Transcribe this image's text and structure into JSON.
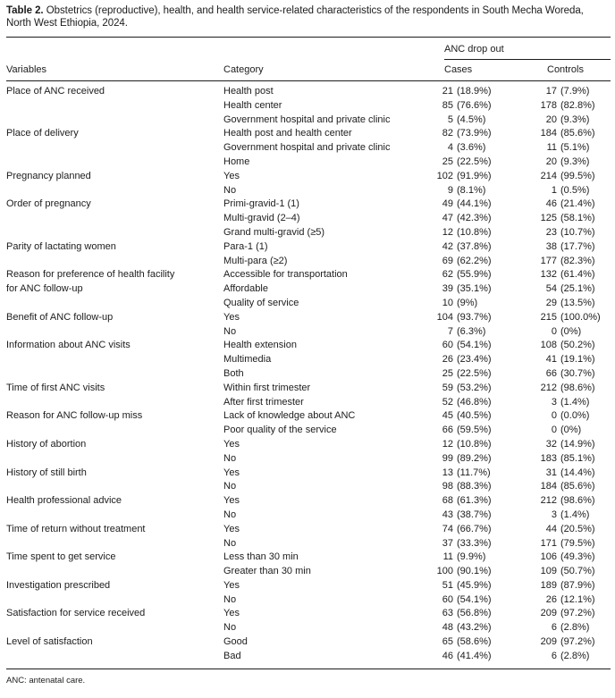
{
  "page": {
    "background": "#ffffff",
    "text_color": "#1c1c1c",
    "rule_color": "#1c1c1c"
  },
  "table": {
    "label": "Table 2.",
    "caption": "Obstetrics (reproductive), health, and health service-related characteristics of the respondents in South Mecha Woreda, North West Ethiopia, 2024.",
    "spanner": "ANC drop out",
    "columns": [
      "Variables",
      "Category",
      "Cases",
      "Controls"
    ],
    "groups": [
      {
        "variable": "Place of ANC received",
        "items": [
          {
            "category": "Health post",
            "cases_n": "21",
            "cases_pct": "(18.9%)",
            "controls_n": "17",
            "controls_pct": "(7.9%)"
          },
          {
            "category": "Health center",
            "cases_n": "85",
            "cases_pct": "(76.6%)",
            "controls_n": "178",
            "controls_pct": "(82.8%)"
          },
          {
            "category": "Government hospital and private clinic",
            "cases_n": "5",
            "cases_pct": "(4.5%)",
            "controls_n": "20",
            "controls_pct": "(9.3%)"
          }
        ]
      },
      {
        "variable": "Place of delivery",
        "items": [
          {
            "category": "Health post and health center",
            "cases_n": "82",
            "cases_pct": "(73.9%)",
            "controls_n": "184",
            "controls_pct": "(85.6%)"
          },
          {
            "category": "Government hospital and private clinic",
            "cases_n": "4",
            "cases_pct": "(3.6%)",
            "controls_n": "11",
            "controls_pct": "(5.1%)"
          },
          {
            "category": "Home",
            "cases_n": "25",
            "cases_pct": "(22.5%)",
            "controls_n": "20",
            "controls_pct": "(9.3%)"
          }
        ]
      },
      {
        "variable": "Pregnancy planned",
        "items": [
          {
            "category": "Yes",
            "cases_n": "102",
            "cases_pct": "(91.9%)",
            "controls_n": "214",
            "controls_pct": "(99.5%)"
          },
          {
            "category": "No",
            "cases_n": "9",
            "cases_pct": "(8.1%)",
            "controls_n": "1",
            "controls_pct": "(0.5%)"
          }
        ]
      },
      {
        "variable": "Order of pregnancy",
        "items": [
          {
            "category": "Primi-gravid-1 (1)",
            "cases_n": "49",
            "cases_pct": "(44.1%)",
            "controls_n": "46",
            "controls_pct": "(21.4%)"
          },
          {
            "category": "Multi-gravid (2–4)",
            "cases_n": "47",
            "cases_pct": "(42.3%)",
            "controls_n": "125",
            "controls_pct": "(58.1%)"
          },
          {
            "category": "Grand multi-gravid (≥5)",
            "cases_n": "12",
            "cases_pct": "(10.8%)",
            "controls_n": "23",
            "controls_pct": "(10.7%)"
          }
        ]
      },
      {
        "variable": "Parity of lactating women",
        "items": [
          {
            "category": "Para-1 (1)",
            "cases_n": "42",
            "cases_pct": "(37.8%)",
            "controls_n": "38",
            "controls_pct": "(17.7%)"
          },
          {
            "category": "Multi-para (≥2)",
            "cases_n": "69",
            "cases_pct": "(62.2%)",
            "controls_n": "177",
            "controls_pct": "(82.3%)"
          }
        ]
      },
      {
        "variable": "Reason for preference of health facility\nfor ANC follow-up",
        "items": [
          {
            "category": "Accessible for transportation",
            "cases_n": "62",
            "cases_pct": "(55.9%)",
            "controls_n": "132",
            "controls_pct": "(61.4%)"
          },
          {
            "category": "Affordable",
            "cases_n": "39",
            "cases_pct": "(35.1%)",
            "controls_n": "54",
            "controls_pct": "(25.1%)"
          },
          {
            "category": "Quality of service",
            "cases_n": "10",
            "cases_pct": "(9%)",
            "controls_n": "29",
            "controls_pct": "(13.5%)"
          }
        ]
      },
      {
        "variable": "Benefit of ANC follow-up",
        "items": [
          {
            "category": "Yes",
            "cases_n": "104",
            "cases_pct": "(93.7%)",
            "controls_n": "215",
            "controls_pct": "(100.0%)"
          },
          {
            "category": "No",
            "cases_n": "7",
            "cases_pct": "(6.3%)",
            "controls_n": "0",
            "controls_pct": "(0%)"
          }
        ]
      },
      {
        "variable": "Information about ANC visits",
        "items": [
          {
            "category": "Health extension",
            "cases_n": "60",
            "cases_pct": "(54.1%)",
            "controls_n": "108",
            "controls_pct": "(50.2%)"
          },
          {
            "category": "Multimedia",
            "cases_n": "26",
            "cases_pct": "(23.4%)",
            "controls_n": "41",
            "controls_pct": "(19.1%)"
          },
          {
            "category": "Both",
            "cases_n": "25",
            "cases_pct": "(22.5%)",
            "controls_n": "66",
            "controls_pct": "(30.7%)"
          }
        ]
      },
      {
        "variable": "Time of first ANC visits",
        "items": [
          {
            "category": "Within first trimester",
            "cases_n": "59",
            "cases_pct": "(53.2%)",
            "controls_n": "212",
            "controls_pct": "(98.6%)"
          },
          {
            "category": "After first trimester",
            "cases_n": "52",
            "cases_pct": "(46.8%)",
            "controls_n": "3",
            "controls_pct": "(1.4%)"
          }
        ]
      },
      {
        "variable": "Reason for ANC follow-up miss",
        "items": [
          {
            "category": "Lack of knowledge about ANC",
            "cases_n": "45",
            "cases_pct": "(40.5%)",
            "controls_n": "0",
            "controls_pct": "(0.0%)"
          },
          {
            "category": "Poor quality of the service",
            "cases_n": "66",
            "cases_pct": "(59.5%)",
            "controls_n": "0",
            "controls_pct": "(0%)"
          }
        ]
      },
      {
        "variable": "History of abortion",
        "items": [
          {
            "category": "Yes",
            "cases_n": "12",
            "cases_pct": "(10.8%)",
            "controls_n": "32",
            "controls_pct": "(14.9%)"
          },
          {
            "category": "No",
            "cases_n": "99",
            "cases_pct": "(89.2%)",
            "controls_n": "183",
            "controls_pct": "(85.1%)"
          }
        ]
      },
      {
        "variable": "History of still birth",
        "items": [
          {
            "category": "Yes",
            "cases_n": "13",
            "cases_pct": "(11.7%)",
            "controls_n": "31",
            "controls_pct": "(14.4%)"
          },
          {
            "category": "No",
            "cases_n": "98",
            "cases_pct": "(88.3%)",
            "controls_n": "184",
            "controls_pct": "(85.6%)"
          }
        ]
      },
      {
        "variable": "Health professional advice",
        "items": [
          {
            "category": "Yes",
            "cases_n": "68",
            "cases_pct": "(61.3%)",
            "controls_n": "212",
            "controls_pct": "(98.6%)"
          },
          {
            "category": "No",
            "cases_n": "43",
            "cases_pct": "(38.7%)",
            "controls_n": "3",
            "controls_pct": "(1.4%)"
          }
        ]
      },
      {
        "variable": "Time of return without treatment",
        "items": [
          {
            "category": "Yes",
            "cases_n": "74",
            "cases_pct": "(66.7%)",
            "controls_n": "44",
            "controls_pct": "(20.5%)"
          },
          {
            "category": "No",
            "cases_n": "37",
            "cases_pct": "(33.3%)",
            "controls_n": "171",
            "controls_pct": "(79.5%)"
          }
        ]
      },
      {
        "variable": "Time spent to get service",
        "items": [
          {
            "category": "Less than 30 min",
            "cases_n": "11",
            "cases_pct": "(9.9%)",
            "controls_n": "106",
            "controls_pct": "(49.3%)"
          },
          {
            "category": "Greater than 30 min",
            "cases_n": "100",
            "cases_pct": "(90.1%)",
            "controls_n": "109",
            "controls_pct": "(50.7%)"
          }
        ]
      },
      {
        "variable": "Investigation prescribed",
        "items": [
          {
            "category": "Yes",
            "cases_n": "51",
            "cases_pct": "(45.9%)",
            "controls_n": "189",
            "controls_pct": "(87.9%)"
          },
          {
            "category": "No",
            "cases_n": "60",
            "cases_pct": "(54.1%)",
            "controls_n": "26",
            "controls_pct": "(12.1%)"
          }
        ]
      },
      {
        "variable": "Satisfaction for service received",
        "items": [
          {
            "category": "Yes",
            "cases_n": "63",
            "cases_pct": "(56.8%)",
            "controls_n": "209",
            "controls_pct": "(97.2%)"
          },
          {
            "category": "No",
            "cases_n": "48",
            "cases_pct": "(43.2%)",
            "controls_n": "6",
            "controls_pct": "(2.8%)"
          }
        ]
      },
      {
        "variable": "Level of satisfaction",
        "items": [
          {
            "category": "Good",
            "cases_n": "65",
            "cases_pct": "(58.6%)",
            "controls_n": "209",
            "controls_pct": "(97.2%)"
          },
          {
            "category": "Bad",
            "cases_n": "46",
            "cases_pct": "(41.4%)",
            "controls_n": "6",
            "controls_pct": "(2.8%)"
          }
        ]
      }
    ],
    "footnote": "ANC: antenatal care."
  }
}
